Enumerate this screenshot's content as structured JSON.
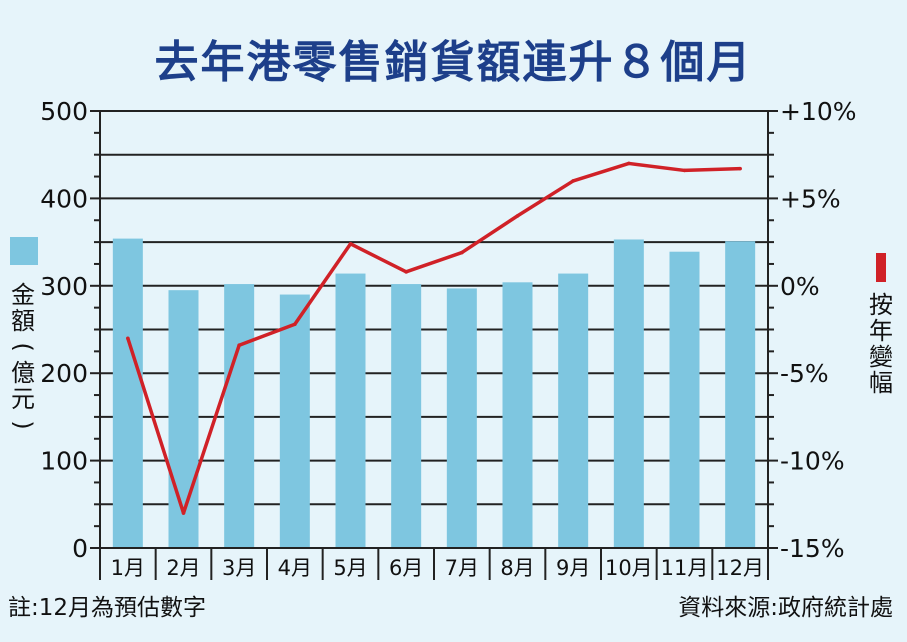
{
  "title": "去年港零售銷貨額連升８個月",
  "footnote_left": "註:12月為預估數字",
  "footnote_right": "資料來源:政府統計處",
  "colors": {
    "bar": "#7ec6e0",
    "line": "#d02127",
    "title": "#1d3f8a",
    "background": "#e6f4fa",
    "grid": "#222222"
  },
  "chart_data": {
    "type": "bar",
    "categories": [
      "1月",
      "2月",
      "3月",
      "4月",
      "5月",
      "6月",
      "7月",
      "8月",
      "9月",
      "10月",
      "11月",
      "12月"
    ],
    "series": [
      {
        "name": "金額(億元)",
        "type": "bar",
        "axis": "left",
        "values": [
          354,
          295,
          302,
          290,
          314,
          302,
          297,
          304,
          314,
          353,
          339,
          351
        ]
      },
      {
        "name": "按年變幅",
        "type": "line",
        "axis": "right",
        "values": [
          -3.0,
          -13.0,
          -3.4,
          -2.2,
          2.4,
          0.8,
          1.9,
          4.0,
          6.0,
          7.0,
          6.6,
          6.7
        ]
      }
    ],
    "ylabel": "金額(億元)",
    "y2label": "按年變幅",
    "ylim": [
      0,
      500
    ],
    "y2lim": [
      -15,
      10
    ],
    "yticks": [
      "0",
      "100",
      "200",
      "300",
      "400",
      "500"
    ],
    "y2ticks": [
      "-15%",
      "-10%",
      "-5%",
      "0%",
      "+5%",
      "+10%"
    ],
    "grid": true
  }
}
